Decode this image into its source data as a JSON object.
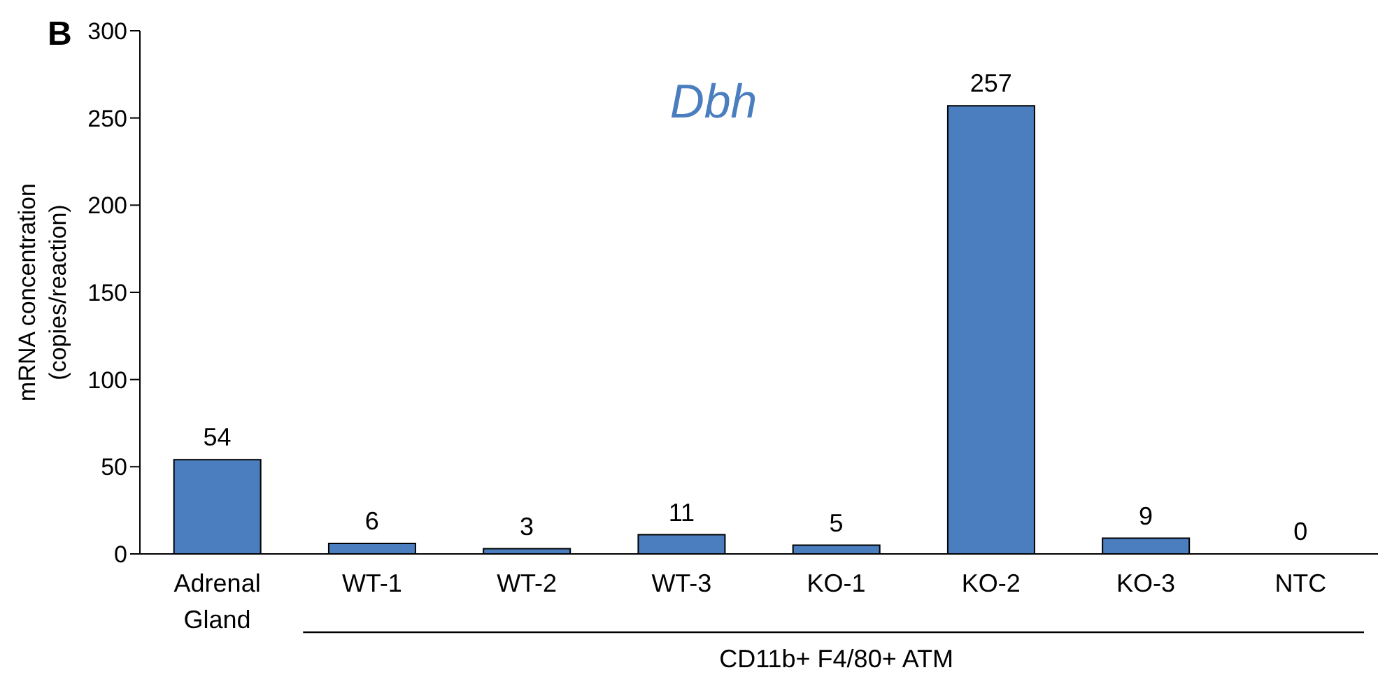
{
  "chart_data": {
    "type": "bar",
    "title": "Dbh",
    "xlabel": "CD11b+ F4/80+ ATM",
    "ylabel": "mRNA concentration\n(copies/reaction)",
    "annotations": [
      "B"
    ],
    "categories": [
      "Adrenal Gland",
      "WT-1",
      "WT-2",
      "WT-3",
      "KO-1",
      "KO-2",
      "KO-3",
      "NTC"
    ],
    "values": [
      54,
      6,
      3,
      11,
      5,
      257,
      9,
      0
    ],
    "color": "#4a7ebf",
    "ylim": [
      0,
      300
    ],
    "yticks": [
      0,
      50,
      100,
      150,
      200,
      250,
      300
    ],
    "data_labels": true
  }
}
